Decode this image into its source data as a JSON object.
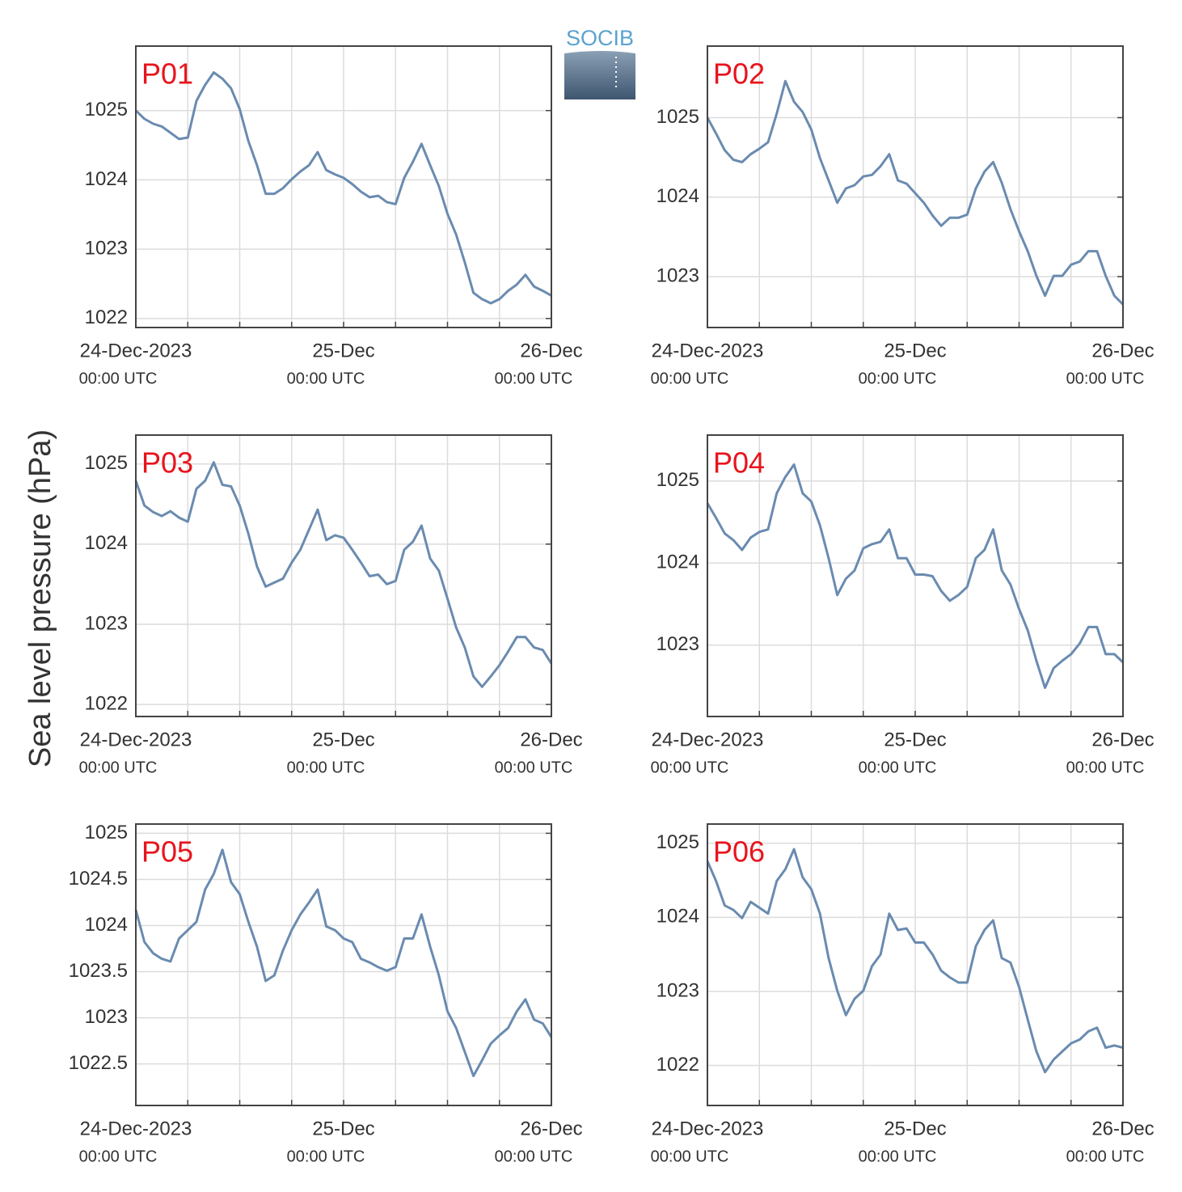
{
  "ylabel": "Sea level pressure (hPa)",
  "logo": "SOCIB",
  "chart_data": [
    {
      "type": "line",
      "title": "P01",
      "xlim": [
        0,
        48
      ],
      "ylim": [
        1021.87,
        1025.93
      ],
      "xticks": [
        {
          "value": 0,
          "label": "24-Dec-2023",
          "sublabel": "00:00 UTC"
        },
        {
          "value": 24,
          "label": "25-Dec",
          "sublabel": "00:00 UTC"
        },
        {
          "value": 48,
          "label": "26-Dec",
          "sublabel": "00:00 UTC"
        }
      ],
      "xgrid": [
        0,
        6,
        12,
        18,
        24,
        30,
        36,
        42,
        48
      ],
      "yticks": [
        1022,
        1023,
        1024,
        1025
      ],
      "grid": true,
      "x": [
        0,
        1,
        2,
        3,
        4,
        5,
        6,
        7,
        8,
        9,
        10,
        11,
        12,
        13,
        14,
        15,
        16,
        17,
        18,
        19,
        20,
        21,
        22,
        23,
        24,
        25,
        26,
        27,
        28,
        29,
        30,
        31,
        32,
        33,
        34,
        35,
        36,
        37,
        38,
        39,
        40,
        41,
        42,
        43,
        44,
        45,
        46,
        47,
        48
      ],
      "series": [
        {
          "color": "#6a8bb0",
          "values": [
            1025.0,
            1024.88,
            1024.81,
            1024.77,
            1024.68,
            1024.59,
            1024.61,
            1025.14,
            1025.37,
            1025.55,
            1025.46,
            1025.32,
            1025.02,
            1024.56,
            1024.21,
            1023.8,
            1023.8,
            1023.88,
            1024.01,
            1024.12,
            1024.21,
            1024.4,
            1024.14,
            1024.08,
            1024.03,
            1023.94,
            1023.83,
            1023.75,
            1023.77,
            1023.68,
            1023.65,
            1024.03,
            1024.26,
            1024.52,
            1024.21,
            1023.91,
            1023.51,
            1023.21,
            1022.81,
            1022.37,
            1022.28,
            1022.22,
            1022.28,
            1022.4,
            1022.49,
            1022.63,
            1022.46,
            1022.4,
            1022.33
          ]
        }
      ]
    },
    {
      "type": "line",
      "title": "P02",
      "xlim": [
        0,
        48
      ],
      "ylim": [
        1022.36,
        1025.9
      ],
      "xticks": [
        {
          "value": 0,
          "label": "24-Dec-2023",
          "sublabel": "00:00 UTC"
        },
        {
          "value": 24,
          "label": "25-Dec",
          "sublabel": "00:00 UTC"
        },
        {
          "value": 48,
          "label": "26-Dec",
          "sublabel": "00:00 UTC"
        }
      ],
      "xgrid": [
        0,
        6,
        12,
        18,
        24,
        30,
        36,
        42,
        48
      ],
      "yticks": [
        1023,
        1024,
        1025
      ],
      "grid": true,
      "x": [
        0,
        1,
        2,
        3,
        4,
        5,
        6,
        7,
        8,
        9,
        10,
        11,
        12,
        13,
        14,
        15,
        16,
        17,
        18,
        19,
        20,
        21,
        22,
        23,
        24,
        25,
        26,
        27,
        28,
        29,
        30,
        31,
        32,
        33,
        34,
        35,
        36,
        37,
        38,
        39,
        40,
        41,
        42,
        43,
        44,
        45,
        46,
        47,
        48
      ],
      "series": [
        {
          "color": "#6a8bb0",
          "values": [
            1025.0,
            1024.8,
            1024.59,
            1024.47,
            1024.44,
            1024.54,
            1024.61,
            1024.69,
            1025.05,
            1025.46,
            1025.2,
            1025.07,
            1024.85,
            1024.49,
            1024.21,
            1023.93,
            1024.11,
            1024.15,
            1024.26,
            1024.28,
            1024.39,
            1024.54,
            1024.21,
            1024.17,
            1024.05,
            1023.93,
            1023.77,
            1023.64,
            1023.74,
            1023.74,
            1023.78,
            1024.11,
            1024.32,
            1024.44,
            1024.18,
            1023.85,
            1023.57,
            1023.32,
            1023.01,
            1022.76,
            1023.01,
            1023.01,
            1023.15,
            1023.19,
            1023.32,
            1023.32,
            1023.01,
            1022.76,
            1022.65
          ]
        }
      ]
    },
    {
      "type": "line",
      "title": "P03",
      "xlim": [
        0,
        48
      ],
      "ylim": [
        1021.85,
        1025.36
      ],
      "xticks": [
        {
          "value": 0,
          "label": "24-Dec-2023",
          "sublabel": "00:00 UTC"
        },
        {
          "value": 24,
          "label": "25-Dec",
          "sublabel": "00:00 UTC"
        },
        {
          "value": 48,
          "label": "26-Dec",
          "sublabel": "00:00 UTC"
        }
      ],
      "xgrid": [
        0,
        6,
        12,
        18,
        24,
        30,
        36,
        42,
        48
      ],
      "yticks": [
        1022,
        1023,
        1024,
        1025
      ],
      "grid": true,
      "x": [
        0,
        1,
        2,
        3,
        4,
        5,
        6,
        7,
        8,
        9,
        10,
        11,
        12,
        13,
        14,
        15,
        16,
        17,
        18,
        19,
        20,
        21,
        22,
        23,
        24,
        25,
        26,
        27,
        28,
        29,
        30,
        31,
        32,
        33,
        34,
        35,
        36,
        37,
        38,
        39,
        40,
        41,
        42,
        43,
        44,
        45,
        46,
        47,
        48
      ],
      "series": [
        {
          "color": "#6a8bb0",
          "values": [
            1024.79,
            1024.48,
            1024.4,
            1024.35,
            1024.41,
            1024.33,
            1024.28,
            1024.69,
            1024.79,
            1025.02,
            1024.74,
            1024.72,
            1024.48,
            1024.13,
            1023.72,
            1023.47,
            1023.52,
            1023.57,
            1023.77,
            1023.93,
            1024.18,
            1024.43,
            1024.05,
            1024.11,
            1024.08,
            1023.93,
            1023.77,
            1023.6,
            1023.62,
            1023.5,
            1023.54,
            1023.93,
            1024.03,
            1024.23,
            1023.82,
            1023.67,
            1023.32,
            1022.96,
            1022.71,
            1022.35,
            1022.22,
            1022.35,
            1022.49,
            1022.66,
            1022.84,
            1022.84,
            1022.71,
            1022.68,
            1022.51
          ]
        }
      ]
    },
    {
      "type": "line",
      "title": "P04",
      "xlim": [
        0,
        48
      ],
      "ylim": [
        1022.13,
        1025.56
      ],
      "xticks": [
        {
          "value": 0,
          "label": "24-Dec-2023",
          "sublabel": "00:00 UTC"
        },
        {
          "value": 24,
          "label": "25-Dec",
          "sublabel": "00:00 UTC"
        },
        {
          "value": 48,
          "label": "26-Dec",
          "sublabel": "00:00 UTC"
        }
      ],
      "xgrid": [
        0,
        6,
        12,
        18,
        24,
        30,
        36,
        42,
        48
      ],
      "yticks": [
        1023,
        1024,
        1025
      ],
      "grid": true,
      "x": [
        0,
        1,
        2,
        3,
        4,
        5,
        6,
        7,
        8,
        9,
        10,
        11,
        12,
        13,
        14,
        15,
        16,
        17,
        18,
        19,
        20,
        21,
        22,
        23,
        24,
        25,
        26,
        27,
        28,
        29,
        30,
        31,
        32,
        33,
        34,
        35,
        36,
        37,
        38,
        39,
        40,
        41,
        42,
        43,
        44,
        45,
        46,
        47,
        48
      ],
      "series": [
        {
          "color": "#6a8bb0",
          "values": [
            1024.73,
            1024.55,
            1024.36,
            1024.28,
            1024.16,
            1024.31,
            1024.38,
            1024.41,
            1024.85,
            1025.05,
            1025.2,
            1024.85,
            1024.75,
            1024.46,
            1024.06,
            1023.61,
            1023.81,
            1023.91,
            1024.18,
            1024.23,
            1024.26,
            1024.41,
            1024.06,
            1024.06,
            1023.86,
            1023.86,
            1023.84,
            1023.66,
            1023.54,
            1023.61,
            1023.71,
            1024.06,
            1024.16,
            1024.41,
            1023.91,
            1023.74,
            1023.44,
            1023.18,
            1022.81,
            1022.48,
            1022.72,
            1022.81,
            1022.89,
            1023.02,
            1023.22,
            1023.22,
            1022.89,
            1022.89,
            1022.79
          ]
        }
      ]
    },
    {
      "type": "line",
      "title": "P05",
      "xlim": [
        0,
        48
      ],
      "ylim": [
        1022.05,
        1025.1
      ],
      "xticks": [
        {
          "value": 0,
          "label": "24-Dec-2023",
          "sublabel": "00:00 UTC"
        },
        {
          "value": 24,
          "label": "25-Dec",
          "sublabel": "00:00 UTC"
        },
        {
          "value": 48,
          "label": "26-Dec",
          "sublabel": "00:00 UTC"
        }
      ],
      "xgrid": [
        0,
        6,
        12,
        18,
        24,
        30,
        36,
        42,
        48
      ],
      "yticks": [
        1022.5,
        1023,
        1023.5,
        1024,
        1024.5,
        1025
      ],
      "grid": true,
      "x": [
        0,
        1,
        2,
        3,
        4,
        5,
        6,
        7,
        8,
        9,
        10,
        11,
        12,
        13,
        14,
        15,
        16,
        17,
        18,
        19,
        20,
        21,
        22,
        23,
        24,
        25,
        26,
        27,
        28,
        29,
        30,
        31,
        32,
        33,
        34,
        35,
        36,
        37,
        38,
        39,
        40,
        41,
        42,
        43,
        44,
        45,
        46,
        47,
        48
      ],
      "series": [
        {
          "color": "#6a8bb0",
          "values": [
            1024.17,
            1023.82,
            1023.7,
            1023.64,
            1023.61,
            1023.86,
            1023.95,
            1024.04,
            1024.39,
            1024.56,
            1024.82,
            1024.47,
            1024.34,
            1024.04,
            1023.77,
            1023.4,
            1023.46,
            1023.73,
            1023.95,
            1024.12,
            1024.25,
            1024.39,
            1023.99,
            1023.95,
            1023.86,
            1023.82,
            1023.64,
            1023.6,
            1023.55,
            1023.51,
            1023.55,
            1023.86,
            1023.86,
            1024.12,
            1023.77,
            1023.46,
            1023.07,
            1022.89,
            1022.63,
            1022.37,
            1022.54,
            1022.72,
            1022.81,
            1022.89,
            1023.07,
            1023.2,
            1022.98,
            1022.94,
            1022.79
          ]
        }
      ]
    },
    {
      "type": "line",
      "title": "P06",
      "xlim": [
        0,
        48
      ],
      "ylim": [
        1021.46,
        1025.26
      ],
      "xticks": [
        {
          "value": 0,
          "label": "24-Dec-2023",
          "sublabel": "00:00 UTC"
        },
        {
          "value": 24,
          "label": "25-Dec",
          "sublabel": "00:00 UTC"
        },
        {
          "value": 48,
          "label": "26-Dec",
          "sublabel": "00:00 UTC"
        }
      ],
      "xgrid": [
        0,
        6,
        12,
        18,
        24,
        30,
        36,
        42,
        48
      ],
      "yticks": [
        1022,
        1023,
        1024,
        1025
      ],
      "grid": true,
      "x": [
        0,
        1,
        2,
        3,
        4,
        5,
        6,
        7,
        8,
        9,
        10,
        11,
        12,
        13,
        14,
        15,
        16,
        17,
        18,
        19,
        20,
        21,
        22,
        23,
        24,
        25,
        26,
        27,
        28,
        29,
        30,
        31,
        32,
        33,
        34,
        35,
        36,
        37,
        38,
        39,
        40,
        41,
        42,
        43,
        44,
        45,
        46,
        47,
        48
      ],
      "series": [
        {
          "color": "#6a8bb0",
          "values": [
            1024.76,
            1024.49,
            1024.16,
            1024.1,
            1023.99,
            1024.21,
            1024.13,
            1024.05,
            1024.49,
            1024.65,
            1024.92,
            1024.54,
            1024.38,
            1024.05,
            1023.45,
            1023.01,
            1022.68,
            1022.9,
            1023.01,
            1023.34,
            1023.5,
            1024.05,
            1023.83,
            1023.85,
            1023.66,
            1023.66,
            1023.5,
            1023.28,
            1023.19,
            1023.12,
            1023.12,
            1023.61,
            1023.83,
            1023.96,
            1023.45,
            1023.39,
            1023.06,
            1022.62,
            1022.19,
            1021.91,
            1022.08,
            1022.19,
            1022.3,
            1022.35,
            1022.46,
            1022.51,
            1022.24,
            1022.27,
            1022.24
          ]
        }
      ]
    }
  ]
}
